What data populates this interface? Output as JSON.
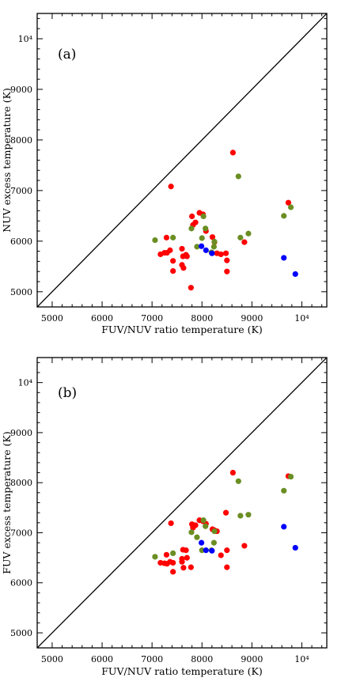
{
  "chart_data": [
    {
      "type": "scatter",
      "panel_label": "(a)",
      "xlabel": "FUV/NUV ratio temperature (K)",
      "ylabel": "NUV excess temperature (K)",
      "xlim": [
        4700,
        10500
      ],
      "ylim": [
        4700,
        10500
      ],
      "x_ticks": [
        5000,
        6000,
        7000,
        8000,
        9000,
        10000
      ],
      "x_tick_labels": [
        "5000",
        "6000",
        "7000",
        "8000",
        "9000",
        "10⁴"
      ],
      "y_ticks": [
        5000,
        6000,
        7000,
        8000,
        9000,
        10000
      ],
      "y_tick_labels": [
        "5000",
        "6000",
        "7000",
        "8000",
        "9000",
        "10⁴"
      ],
      "reference_line": "y = x",
      "series": [
        {
          "color": "#ff0000",
          "points": [
            [
              7380,
              7080
            ],
            [
              7800,
              6490
            ],
            [
              7950,
              6560
            ],
            [
              8020,
              6530
            ],
            [
              8210,
              6080
            ],
            [
              7820,
              6320
            ],
            [
              7870,
              6370
            ],
            [
              8080,
              6200
            ],
            [
              8250,
              5980
            ],
            [
              7290,
              6070
            ],
            [
              7360,
              5820
            ],
            [
              7170,
              5740
            ],
            [
              7250,
              5770
            ],
            [
              7300,
              5770
            ],
            [
              7420,
              5610
            ],
            [
              7420,
              5410
            ],
            [
              7600,
              5530
            ],
            [
              7630,
              5470
            ],
            [
              7620,
              5700
            ],
            [
              7680,
              5730
            ],
            [
              7700,
              5700
            ],
            [
              7600,
              5850
            ],
            [
              7780,
              5080
            ],
            [
              8300,
              5760
            ],
            [
              8380,
              5740
            ],
            [
              8480,
              5760
            ],
            [
              8500,
              5620
            ],
            [
              8500,
              5400
            ],
            [
              8620,
              7750
            ],
            [
              8850,
              5980
            ],
            [
              9730,
              6760
            ]
          ]
        },
        {
          "color": "#6b8e23",
          "points": [
            [
              7060,
              6020
            ],
            [
              7420,
              6070
            ],
            [
              7790,
              6250
            ],
            [
              8000,
              6060
            ],
            [
              7900,
              5890
            ],
            [
              8030,
              6490
            ],
            [
              8070,
              6250
            ],
            [
              8250,
              5990
            ],
            [
              8240,
              5890
            ],
            [
              8190,
              5780
            ],
            [
              8730,
              7280
            ],
            [
              8770,
              6070
            ],
            [
              8930,
              6150
            ],
            [
              9640,
              6500
            ],
            [
              9780,
              6670
            ]
          ]
        },
        {
          "color": "#0000ff",
          "points": [
            [
              7990,
              5900
            ],
            [
              8080,
              5820
            ],
            [
              8200,
              5760
            ],
            [
              9640,
              5670
            ],
            [
              9870,
              5350
            ]
          ]
        }
      ]
    },
    {
      "type": "scatter",
      "panel_label": "(b)",
      "xlabel": "FUV/NUV ratio temperature (K)",
      "ylabel": "FUV excess temperature (K)",
      "xlim": [
        4700,
        10500
      ],
      "ylim": [
        4700,
        10500
      ],
      "x_ticks": [
        5000,
        6000,
        7000,
        8000,
        9000,
        10000
      ],
      "x_tick_labels": [
        "5000",
        "6000",
        "7000",
        "8000",
        "9000",
        "10⁴"
      ],
      "y_ticks": [
        5000,
        6000,
        7000,
        8000,
        9000,
        10000
      ],
      "y_tick_labels": [
        "5000",
        "6000",
        "7000",
        "8000",
        "9000",
        "10⁴"
      ],
      "reference_line": "y = x",
      "series": [
        {
          "color": "#ff0000",
          "points": [
            [
              7380,
              7190
            ],
            [
              7800,
              7170
            ],
            [
              7950,
              7250
            ],
            [
              8020,
              7230
            ],
            [
              8210,
              7070
            ],
            [
              7820,
              7100
            ],
            [
              7870,
              7150
            ],
            [
              8080,
              7180
            ],
            [
              8250,
              7050
            ],
            [
              7290,
              6560
            ],
            [
              7360,
              6420
            ],
            [
              7170,
              6400
            ],
            [
              7250,
              6390
            ],
            [
              7300,
              6380
            ],
            [
              7420,
              6400
            ],
            [
              7420,
              6220
            ],
            [
              7600,
              6480
            ],
            [
              7630,
              6300
            ],
            [
              7620,
              6660
            ],
            [
              7680,
              6650
            ],
            [
              7700,
              6500
            ],
            [
              7600,
              6420
            ],
            [
              7780,
              6310
            ],
            [
              8300,
              7030
            ],
            [
              8380,
              6550
            ],
            [
              8480,
              7400
            ],
            [
              8500,
              6650
            ],
            [
              8500,
              6310
            ],
            [
              8620,
              8200
            ],
            [
              8850,
              6740
            ],
            [
              9730,
              8130
            ]
          ]
        },
        {
          "color": "#6b8e23",
          "points": [
            [
              7060,
              6520
            ],
            [
              7420,
              6590
            ],
            [
              7790,
              7010
            ],
            [
              8000,
              6650
            ],
            [
              7900,
              6910
            ],
            [
              8030,
              7250
            ],
            [
              8070,
              7130
            ],
            [
              8250,
              7030
            ],
            [
              8240,
              6800
            ],
            [
              8190,
              6650
            ],
            [
              8730,
              8030
            ],
            [
              8770,
              7340
            ],
            [
              8930,
              7360
            ],
            [
              9640,
              7840
            ],
            [
              9780,
              8120
            ]
          ]
        },
        {
          "color": "#0000ff",
          "points": [
            [
              7990,
              6800
            ],
            [
              8080,
              6650
            ],
            [
              8200,
              6640
            ],
            [
              9640,
              7120
            ],
            [
              9870,
              6700
            ]
          ]
        }
      ]
    }
  ]
}
